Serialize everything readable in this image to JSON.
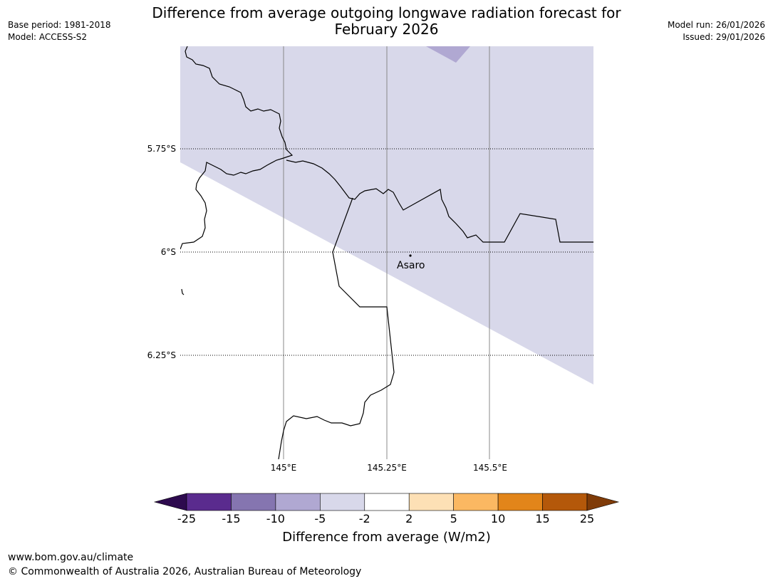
{
  "title": {
    "line1": "Difference from average outgoing longwave radiation forecast for",
    "line2": "February 2026"
  },
  "meta_left": {
    "base_period": "Base period: 1981-2018",
    "model": "Model: ACCESS-S2"
  },
  "meta_right": {
    "model_run": "Model run: 26/01/2026",
    "issued": "Issued: 29/01/2026"
  },
  "map": {
    "lat_labels": [
      "5.75°S",
      "6°S",
      "6.25°S"
    ],
    "lon_labels": [
      "145°E",
      "145.25°E",
      "145.5°E"
    ],
    "place": "Asaro"
  },
  "legend": {
    "ticks": [
      "-25",
      "-15",
      "-10",
      "-5",
      "-2",
      "2",
      "5",
      "10",
      "15",
      "25"
    ],
    "colors": [
      "#5a2b8e",
      "#8575b0",
      "#b0a8d2",
      "#d8d8ea",
      "#ffffff",
      "#fde0b5",
      "#fbb862",
      "#e2851a",
      "#b4580a"
    ],
    "under_color": "#2d0a4e",
    "over_color": "#7f3b08",
    "label": "Difference from average (W/m2)"
  },
  "footer": {
    "url": "www.bom.gov.au/climate",
    "copyright": "© Commonwealth of Australia 2026, Australian Bureau of Meteorology"
  }
}
